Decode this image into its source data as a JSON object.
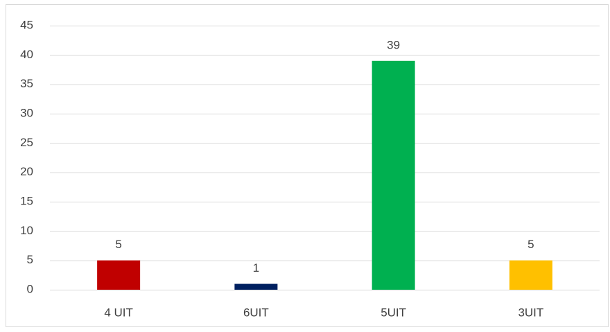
{
  "chart_data": {
    "type": "bar",
    "categories": [
      "4 UIT",
      "6UIT",
      "5UIT",
      "3UIT"
    ],
    "values": [
      5,
      1,
      39,
      5
    ],
    "colors": [
      "#c00000",
      "#002060",
      "#00b050",
      "#ffc000"
    ],
    "ylim": [
      0,
      45
    ],
    "yticks": [
      0,
      5,
      10,
      15,
      20,
      25,
      30,
      35,
      40,
      45
    ],
    "grid": true,
    "data_labels": true
  }
}
